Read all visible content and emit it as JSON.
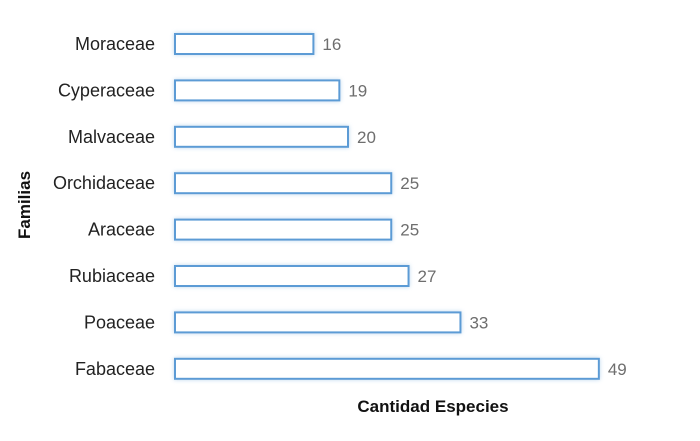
{
  "chart_data": {
    "type": "bar",
    "orientation": "horizontal",
    "categories": [
      "Moraceae",
      "Cyperaceae",
      "Malvaceae",
      "Orchidaceae",
      "Araceae",
      "Rubiaceae",
      "Poaceae",
      "Fabaceae"
    ],
    "values": [
      16,
      19,
      20,
      25,
      25,
      27,
      33,
      49
    ],
    "xlabel": "Cantidad Especies",
    "ylabel": "Familias",
    "xlim": [
      0,
      49
    ],
    "grid": false,
    "legend": "none",
    "colors": {
      "bar_fill": "#ffffff",
      "bar_border": "#5b9bd5",
      "bar_glow": "#bdd7ee"
    }
  }
}
